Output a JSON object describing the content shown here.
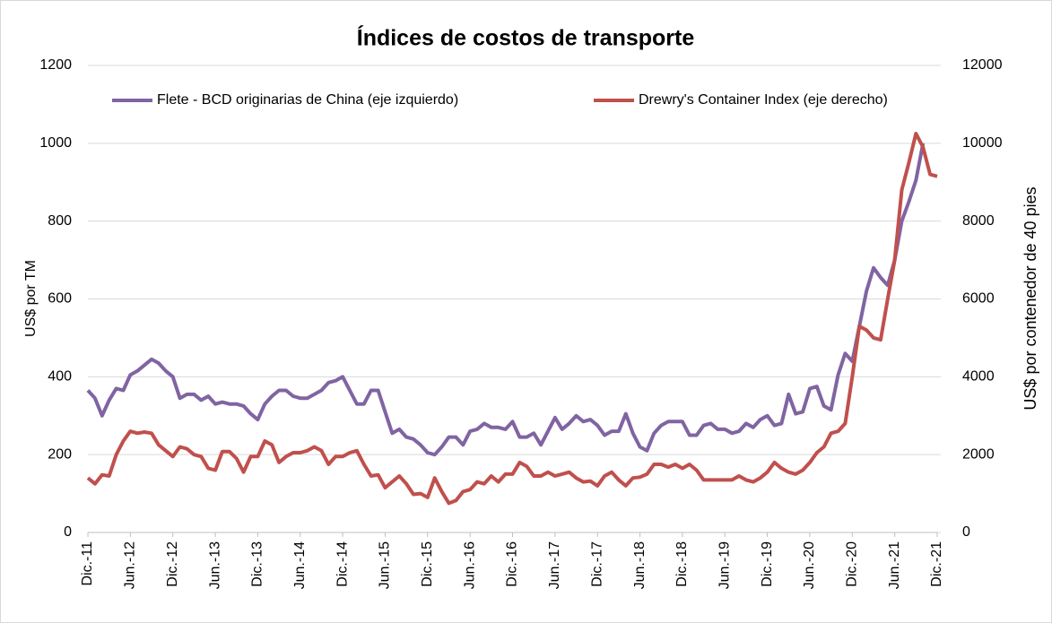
{
  "chart_data": {
    "type": "line",
    "title": "Índices de costos de transporte",
    "ylabel": "US$ por TM",
    "y2label": "US$ por contenedor de 40 pies",
    "categories": [
      "Dic.-11",
      null,
      null,
      null,
      null,
      null,
      "Jun.-12",
      null,
      null,
      null,
      null,
      null,
      "Dic.-12",
      null,
      null,
      null,
      null,
      null,
      "Jun.-13",
      null,
      null,
      null,
      null,
      null,
      "Dic.-13",
      null,
      null,
      null,
      null,
      null,
      "Jun.-14",
      null,
      null,
      null,
      null,
      null,
      "Dic.-14",
      null,
      null,
      null,
      null,
      null,
      "Jun.-15",
      null,
      null,
      null,
      null,
      null,
      "Dic.-15",
      null,
      null,
      null,
      null,
      null,
      "Jun.-16",
      null,
      null,
      null,
      null,
      null,
      "Dic.-16",
      null,
      null,
      null,
      null,
      null,
      "Jun.-17",
      null,
      null,
      null,
      null,
      null,
      "Dic.-17",
      null,
      null,
      null,
      null,
      null,
      "Jun.-18",
      null,
      null,
      null,
      null,
      null,
      "Dic.-18",
      null,
      null,
      null,
      null,
      null,
      "Jun.-19",
      null,
      null,
      null,
      null,
      null,
      "Dic.-19",
      null,
      null,
      null,
      null,
      null,
      "Jun.-20",
      null,
      null,
      null,
      null,
      null,
      "Dic.-20",
      null,
      null,
      null,
      null,
      null,
      "Jun.-21",
      null,
      null,
      null,
      null,
      null,
      "Dic.-21"
    ],
    "series": [
      {
        "name": "Flete - BCD originarias de China (eje izquierdo)",
        "color": "#8064a2",
        "axis": "y",
        "values": [
          365,
          345,
          300,
          340,
          370,
          365,
          405,
          415,
          430,
          445,
          435,
          415,
          400,
          345,
          355,
          355,
          340,
          350,
          330,
          335,
          330,
          330,
          325,
          305,
          290,
          330,
          350,
          365,
          365,
          350,
          345,
          345,
          355,
          365,
          385,
          390,
          400,
          365,
          330,
          330,
          365,
          365,
          310,
          255,
          265,
          245,
          240,
          225,
          205,
          200,
          220,
          245,
          245,
          225,
          260,
          265,
          280,
          270,
          270,
          265,
          285,
          245,
          245,
          255,
          225,
          260,
          295,
          265,
          280,
          300,
          285,
          290,
          275,
          250,
          260,
          260,
          305,
          255,
          220,
          210,
          255,
          275,
          285,
          285,
          285,
          250,
          250,
          275,
          280,
          265,
          265,
          255,
          260,
          280,
          270,
          290,
          300,
          275,
          280,
          355,
          305,
          310,
          370,
          375,
          325,
          315,
          405,
          460,
          440,
          530,
          620,
          680,
          655,
          635,
          700,
          800,
          850,
          905,
          1000,
          null,
          null
        ]
      },
      {
        "name": "Drewry's Container Index (eje derecho)",
        "color": "#c0504d",
        "axis": "y2",
        "values": [
          1400,
          1250,
          1480,
          1450,
          2000,
          2350,
          2600,
          2550,
          2580,
          2550,
          2250,
          2100,
          1950,
          2200,
          2150,
          2000,
          1950,
          1650,
          1600,
          2080,
          2080,
          1900,
          1550,
          1950,
          1950,
          2350,
          2250,
          1800,
          1950,
          2050,
          2050,
          2100,
          2200,
          2100,
          1750,
          1950,
          1950,
          2050,
          2100,
          1750,
          1450,
          1480,
          1150,
          1300,
          1450,
          1250,
          980,
          1000,
          900,
          1400,
          1050,
          750,
          820,
          1050,
          1100,
          1300,
          1250,
          1450,
          1300,
          1500,
          1500,
          1800,
          1700,
          1450,
          1450,
          1550,
          1450,
          1500,
          1550,
          1400,
          1300,
          1320,
          1200,
          1450,
          1550,
          1350,
          1200,
          1400,
          1420,
          1500,
          1750,
          1750,
          1680,
          1750,
          1650,
          1750,
          1600,
          1350,
          1350,
          1350,
          1350,
          1350,
          1450,
          1350,
          1300,
          1400,
          1550,
          1800,
          1650,
          1550,
          1500,
          1600,
          1800,
          2050,
          2200,
          2550,
          2600,
          2800,
          4000,
          5300,
          5200,
          5000,
          4950,
          6000,
          7000,
          8800,
          9500,
          10250,
          9900,
          9200,
          9150
        ]
      }
    ],
    "ylim": [
      0,
      1200
    ],
    "yticks": [
      0,
      200,
      400,
      600,
      800,
      1000,
      1200
    ],
    "y2lim": [
      0,
      12000
    ],
    "y2ticks": [
      0,
      2000,
      4000,
      6000,
      8000,
      10000,
      12000
    ],
    "grid": true,
    "legend": "top"
  }
}
